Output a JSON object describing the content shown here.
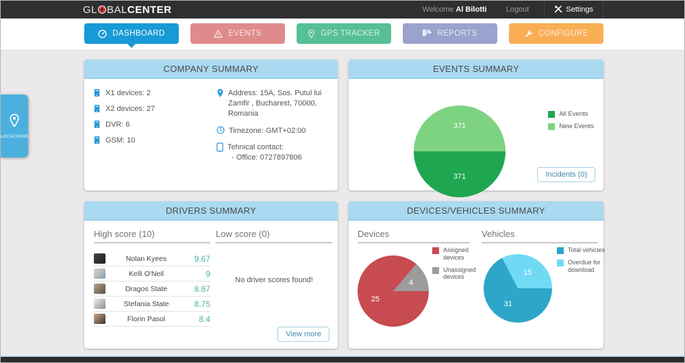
{
  "topbar": {
    "logo_part1": "GL",
    "logo_part2": "BAL",
    "logo_part3": "CENTER",
    "welcome_label": "Welcome",
    "user_name": "Al Bilotti",
    "logout_label": "Logout",
    "settings_label": "Settings"
  },
  "nav": {
    "tabs": [
      {
        "label": "DASHBOARD",
        "icon": "gauge",
        "color": "#189ad6",
        "active": true
      },
      {
        "label": "EVENTS",
        "icon": "warning",
        "color": "#df8b8c",
        "active": false
      },
      {
        "label": "GPS TRACKER",
        "icon": "pin",
        "color": "#57bf95",
        "active": false
      },
      {
        "label": "REPORTS",
        "icon": "pie",
        "color": "#9aa2ce",
        "active": false
      },
      {
        "label": "CONFIGURE",
        "icon": "wrench",
        "color": "#f9ae55",
        "active": false
      }
    ]
  },
  "side_tab": {
    "label": "LOCATIONS"
  },
  "company_summary": {
    "title": "COMPANY SUMMARY",
    "device_counts": [
      {
        "icon": "device-icon",
        "label": "X1 devices: 2"
      },
      {
        "icon": "device-icon",
        "label": "X2 devices: 27"
      },
      {
        "icon": "device-icon",
        "label": "DVR: 6"
      },
      {
        "icon": "device-icon",
        "label": "GSM: 10"
      }
    ],
    "address": "Address: 15A, Sos. Putul lui Zamfir , Bucharest, 70000, Romania",
    "timezone": "Timezone: GMT+02:00",
    "contact_title": "Tehnical contact:",
    "contact_office": "- Office: 0727897806"
  },
  "events_summary": {
    "title": "EVENTS SUMMARY",
    "incidents_button": "Incidents (0)"
  },
  "drivers_summary": {
    "title": "DRIVERS SUMMARY",
    "high_score_header": "High score (10)",
    "low_score_header": "Low score (0)",
    "high_scores": [
      {
        "name": "Nolan Kyees",
        "score": "9.67"
      },
      {
        "name": "Kelli O'Neil",
        "score": "9"
      },
      {
        "name": "Dragos State",
        "score": "8.87"
      },
      {
        "name": "Stefania State",
        "score": "8.75"
      },
      {
        "name": "Florin Pasol",
        "score": "8.4"
      }
    ],
    "low_score_empty": "No driver scores found!",
    "view_more_button": "View more"
  },
  "devices_vehicles_summary": {
    "title": "DEVICES/VEHICLES SUMMARY",
    "devices_header": "Devices",
    "vehicles_header": "Vehicles"
  },
  "chart_data": [
    {
      "type": "pie",
      "title": "Events Summary",
      "start_angle": "east-clockwise",
      "legend_position": "top-right",
      "series": [
        {
          "name": "All Events",
          "value": 371,
          "color": "#1ea650"
        },
        {
          "name": "New Events",
          "value": 371,
          "color": "#7ed382"
        }
      ]
    },
    {
      "type": "pie",
      "title": "Devices",
      "start_angle": "east-clockwise",
      "legend_position": "right",
      "series": [
        {
          "name": "Assigned devices",
          "value": 25,
          "color": "#c74b50"
        },
        {
          "name": "Unassigned devices",
          "value": 4,
          "color": "#9c9c9c"
        }
      ]
    },
    {
      "type": "pie",
      "title": "Vehicles",
      "start_angle": "east-clockwise",
      "legend_position": "right",
      "series": [
        {
          "name": "Total vehicles",
          "value": 31,
          "color": "#2ea6ca"
        },
        {
          "name": "Overdue for download",
          "value": 15,
          "color": "#70daf4"
        }
      ]
    }
  ],
  "colors": {
    "accent_blue": "#189ad6",
    "panel_header_blue": "#aad9f1",
    "score_teal": "#4eb3a2",
    "link_blue": "#3d89ae",
    "topbar_dark": "#2d2f31"
  }
}
